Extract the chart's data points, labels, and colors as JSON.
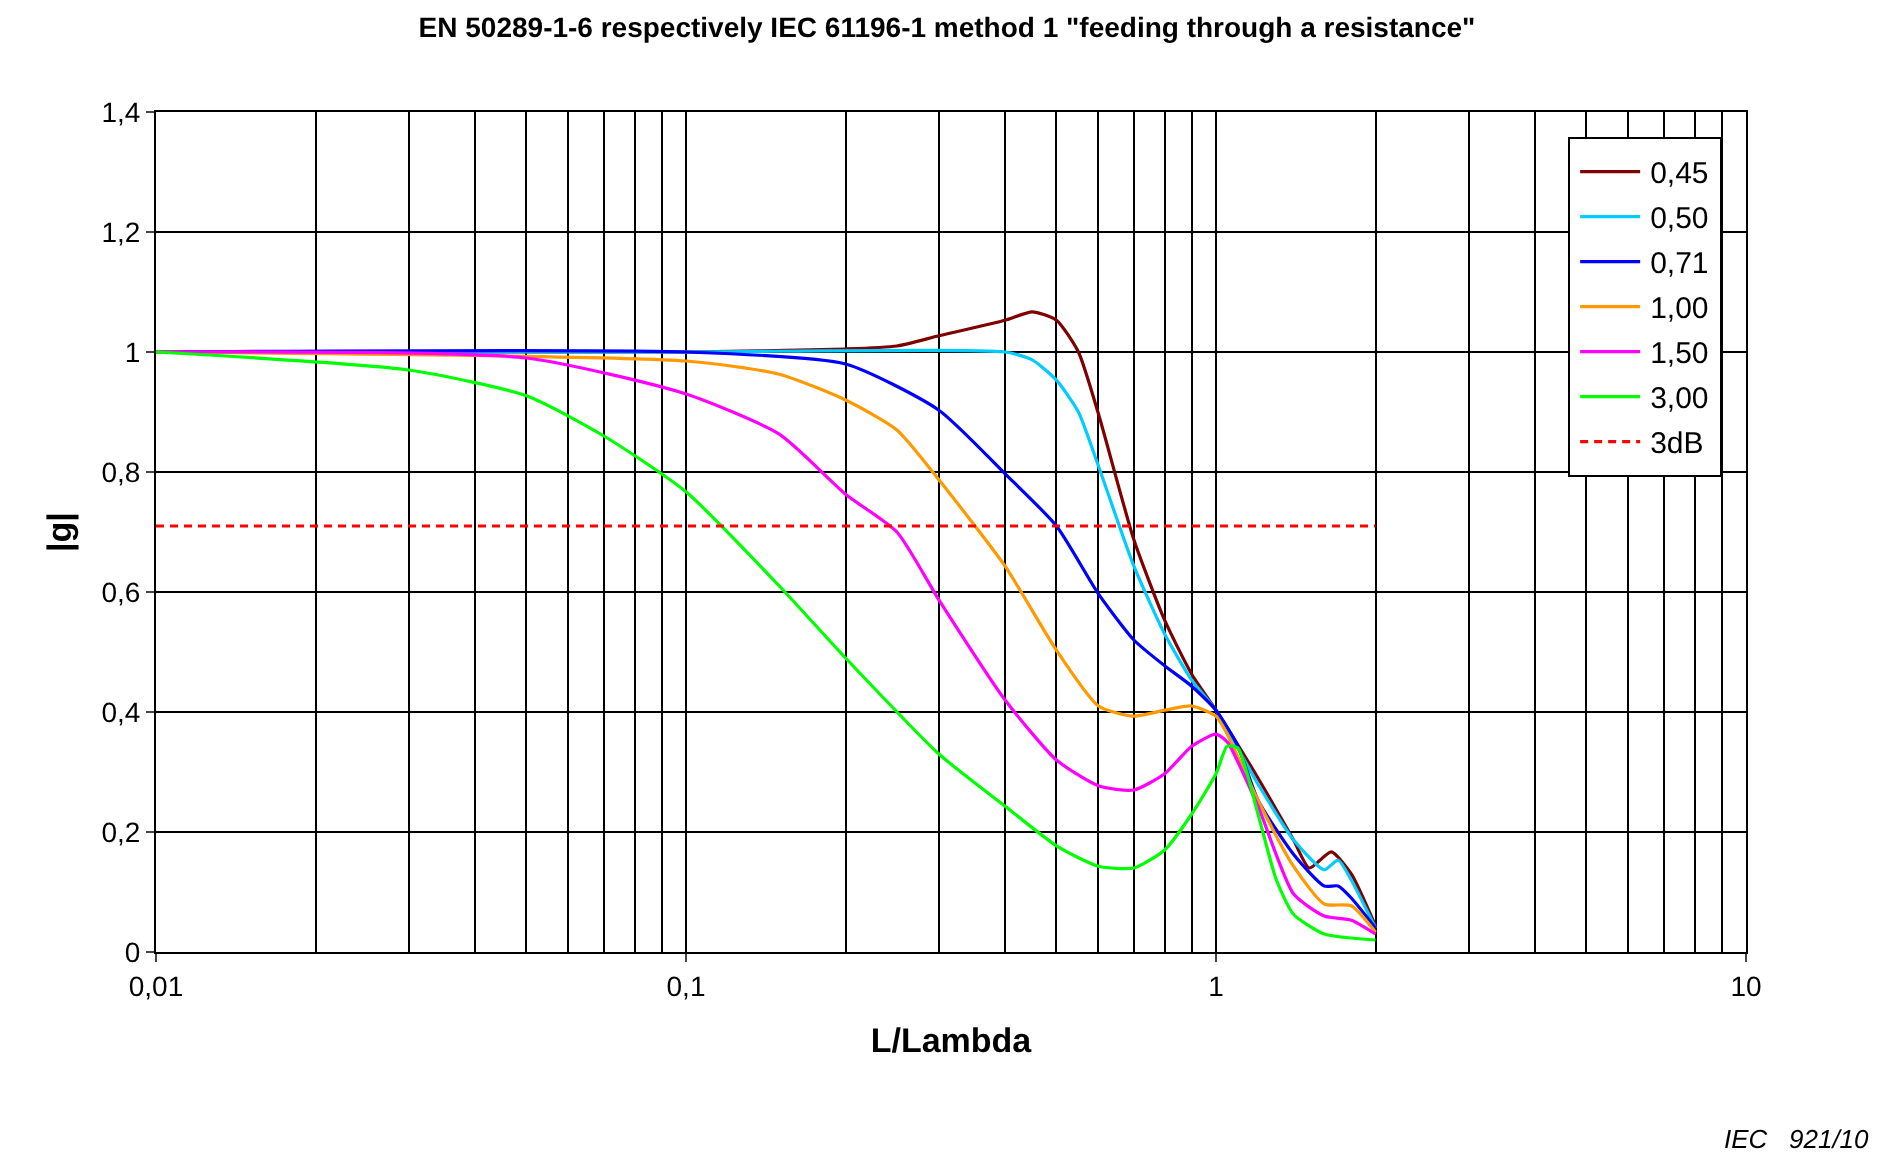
{
  "chart_data": {
    "type": "line",
    "title": "EN 50289-1-6 respectively IEC 61196-1 method 1 \"feeding through a resistance\"",
    "xlabel": "L/Lambda",
    "ylabel": "|g|",
    "log": "x",
    "xlim": [
      0.01,
      10
    ],
    "xticks": [
      {
        "value": 0.01,
        "label": "0,01"
      },
      {
        "value": 0.1,
        "label": "0,1"
      },
      1,
      10
    ],
    "ylim": [
      0,
      1.4
    ],
    "yticks": [
      0,
      {
        "value": 0.2,
        "label": "0,2"
      },
      {
        "value": 0.4,
        "label": "0,4"
      },
      {
        "value": 0.6,
        "label": "0,6"
      },
      {
        "value": 0.8,
        "label": "0,8"
      },
      1,
      {
        "value": 1.2,
        "label": "1,2"
      },
      {
        "value": 1.4,
        "label": "1,4"
      }
    ],
    "grid": true,
    "legend": "top right",
    "marker": "none",
    "annotations": [
      "IEC   921/10"
    ],
    "series": [
      {
        "name": "0,45",
        "color": "#800000",
        "x": [
          0.01,
          0.1,
          0.2,
          0.25,
          0.3,
          0.4,
          0.45,
          0.5,
          0.55,
          0.6,
          0.7,
          0.8,
          0.9,
          1.0,
          1.2,
          1.4,
          1.5,
          1.65,
          1.8,
          2.0
        ],
        "values": [
          1.0,
          1.0,
          1.005,
          1.01,
          1.027,
          1.053,
          1.067,
          1.053,
          1.0,
          0.897,
          0.687,
          0.553,
          0.463,
          0.403,
          0.29,
          0.187,
          0.14,
          0.167,
          0.13,
          0.043
        ]
      },
      {
        "name": "0,50",
        "color": "#00ccff",
        "x": [
          0.01,
          0.1,
          0.4,
          0.45,
          0.5,
          0.55,
          0.6,
          0.7,
          0.8,
          0.9,
          1.0,
          1.2,
          1.4,
          1.6,
          1.7,
          1.8,
          2.0
        ],
        "values": [
          1.0,
          1.0,
          1.0,
          0.987,
          0.953,
          0.9,
          0.81,
          0.643,
          0.53,
          0.453,
          0.403,
          0.28,
          0.187,
          0.137,
          0.153,
          0.12,
          0.04
        ]
      },
      {
        "name": "0,71",
        "color": "#0000ff",
        "x": [
          0.01,
          0.1,
          0.2,
          0.3,
          0.4,
          0.5,
          0.6,
          0.7,
          0.8,
          0.9,
          1.0,
          1.1,
          1.2,
          1.4,
          1.6,
          1.7,
          1.8,
          2.0
        ],
        "values": [
          1.0,
          1.0,
          0.98,
          0.903,
          0.797,
          0.71,
          0.597,
          0.52,
          0.477,
          0.443,
          0.403,
          0.343,
          0.253,
          0.163,
          0.11,
          0.11,
          0.09,
          0.04
        ]
      },
      {
        "name": "1,00",
        "color": "#ff9900",
        "x": [
          0.01,
          0.1,
          0.15,
          0.2,
          0.25,
          0.3,
          0.4,
          0.5,
          0.6,
          0.7,
          0.8,
          0.9,
          1.0,
          1.05,
          1.2,
          1.4,
          1.6,
          1.8,
          2.0
        ],
        "values": [
          1.0,
          0.985,
          0.963,
          0.92,
          0.87,
          0.787,
          0.643,
          0.503,
          0.41,
          0.393,
          0.403,
          0.41,
          0.393,
          0.363,
          0.253,
          0.143,
          0.08,
          0.077,
          0.033
        ]
      },
      {
        "name": "1,50",
        "color": "#ff00ff",
        "x": [
          0.01,
          0.05,
          0.1,
          0.15,
          0.2,
          0.25,
          0.3,
          0.4,
          0.5,
          0.6,
          0.7,
          0.8,
          0.9,
          1.0,
          1.05,
          1.2,
          1.4,
          1.6,
          1.8,
          2.0
        ],
        "values": [
          1.0,
          0.99,
          0.93,
          0.863,
          0.763,
          0.7,
          0.587,
          0.42,
          0.32,
          0.277,
          0.27,
          0.297,
          0.343,
          0.363,
          0.35,
          0.243,
          0.097,
          0.06,
          0.053,
          0.03
        ]
      },
      {
        "name": "3,00",
        "color": "#00ff00",
        "x": [
          0.01,
          0.03,
          0.05,
          0.07,
          0.1,
          0.15,
          0.2,
          0.3,
          0.4,
          0.5,
          0.6,
          0.7,
          0.8,
          0.9,
          1.0,
          1.05,
          1.1,
          1.2,
          1.3,
          1.4,
          1.6,
          2.0
        ],
        "values": [
          1.0,
          0.97,
          0.927,
          0.86,
          0.767,
          0.61,
          0.49,
          0.33,
          0.243,
          0.177,
          0.143,
          0.14,
          0.17,
          0.23,
          0.297,
          0.343,
          0.34,
          0.23,
          0.12,
          0.063,
          0.03,
          0.02
        ]
      },
      {
        "name": "3dB",
        "color": "#ff0000",
        "line_style": "dashed",
        "x": [
          0.01,
          2.0
        ],
        "values": [
          0.71,
          0.71
        ]
      }
    ]
  }
}
